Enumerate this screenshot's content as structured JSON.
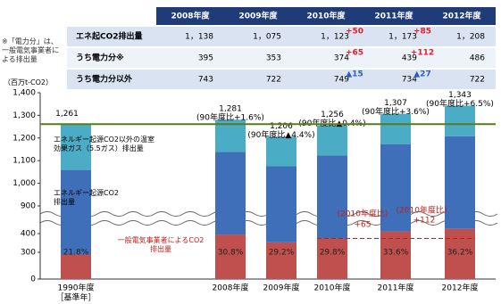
{
  "note": "※「電力分」は、一般電気事業者による排出量",
  "table": {
    "header": [
      "2008年度",
      "2009年度",
      "2010年度",
      "2011年度",
      "2012年度"
    ],
    "rows": [
      {
        "label": "エネ起CO2排出量",
        "cells": [
          "1，138",
          "1，075",
          "1，123",
          "1，173",
          "1，208"
        ],
        "changes": [
          "+50",
          "+85"
        ],
        "change_color": "#e0202a"
      },
      {
        "label": "うち電力分※",
        "cells": [
          "395",
          "353",
          "374",
          "439",
          "486"
        ],
        "changes": [
          "+65",
          "+112"
        ],
        "change_color": "#e0202a"
      },
      {
        "label": "うち電力分以外",
        "cells": [
          "743",
          "722",
          "749",
          "734",
          "722"
        ],
        "changes": [
          "▲15",
          "▲27"
        ],
        "change_color": "#2f5fb3"
      }
    ]
  },
  "chart_data": {
    "type": "bar",
    "stacked": true,
    "unit_label": "（百万t-CO2）",
    "categories": [
      "1990年度",
      "2008年度",
      "2009年度",
      "2010年度",
      "2011年度",
      "2012年度"
    ],
    "category_sublabel": "［基準年］",
    "series": [
      {
        "name": "一般電気事業者によるCO2排出量",
        "color": "#c0504d",
        "values": [
          275,
          395,
          353,
          374,
          439,
          486
        ]
      },
      {
        "name": "エネルギー起源CO2排出量",
        "color": "#3e6fb8",
        "values": [
          784,
          743,
          722,
          749,
          734,
          722
        ]
      },
      {
        "name": "エネルギー起源CO2以外の温室効果ガス（5.5ガス）排出量",
        "color": "#4bacc6",
        "values": [
          202,
          143,
          131,
          133,
          134,
          135
        ]
      }
    ],
    "total_values": [
      1261,
      1281,
      1206,
      1256,
      1307,
      1343
    ],
    "total_labels": [
      "1,261",
      "1,281",
      "1,206",
      "1,256",
      "1,307",
      "1,343"
    ],
    "comparison_labels": [
      "(90年度比+1.6%)",
      "(90年度比▲4.4%)",
      "(90年度比▲0.4%)",
      "(90年度比+3.6%)",
      "(90年度比+6.5%)"
    ],
    "share_labels": [
      "21.8%",
      "30.8%",
      "29.2%",
      "29.8%",
      "33.6%",
      "36.2%"
    ],
    "reference_line": {
      "value": 1261,
      "color": "#5a7a1e"
    },
    "annotations": [
      "(2010年度比)",
      "+65",
      "(2010年度比)",
      "+112"
    ],
    "ylim": [
      0,
      1400
    ],
    "yticks": [
      0,
      300,
      400,
      900,
      {
        "value": 1000,
        "label": "1,000"
      },
      {
        "value": 1100,
        "label": "1,100"
      },
      {
        "value": 1200,
        "label": "1,200"
      },
      {
        "value": 1300,
        "label": "1,300"
      },
      {
        "value": 1400,
        "label": "1,400"
      }
    ]
  }
}
